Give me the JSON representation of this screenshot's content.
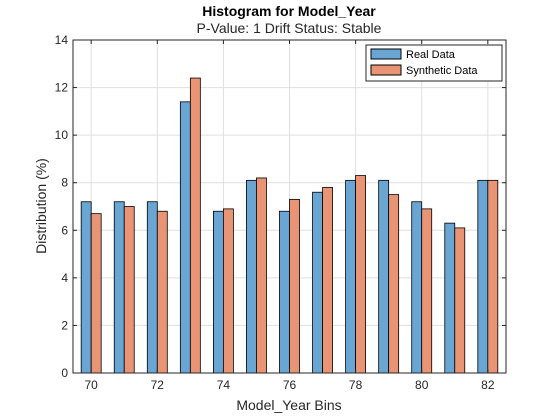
{
  "chart_data": {
    "type": "bar",
    "title": "Histogram for Model_Year",
    "subtitle": "P-Value: 1 Drift Status: Stable",
    "xlabel": "Model_Year Bins",
    "ylabel": "Distribution (%)",
    "categories": [
      70,
      71,
      72,
      73,
      74,
      75,
      76,
      77,
      78,
      79,
      80,
      81,
      82
    ],
    "xticks": [
      70,
      72,
      74,
      76,
      78,
      80,
      82
    ],
    "xlim": [
      69.45,
      82.55
    ],
    "ylim": [
      0,
      14
    ],
    "yticks": [
      0,
      2,
      4,
      6,
      8,
      10,
      12,
      14
    ],
    "grid": true,
    "legend_position": "top-right",
    "series": [
      {
        "name": "Real Data",
        "color": "#6aa6d4",
        "values": [
          7.2,
          7.2,
          7.2,
          11.4,
          6.8,
          8.1,
          6.8,
          7.6,
          8.1,
          8.1,
          7.2,
          6.3,
          8.1
        ]
      },
      {
        "name": "Synthetic Data",
        "color": "#e99575",
        "values": [
          6.7,
          7.0,
          6.8,
          12.4,
          6.9,
          8.2,
          7.3,
          7.8,
          8.3,
          7.5,
          6.9,
          6.1,
          8.1
        ]
      }
    ]
  }
}
